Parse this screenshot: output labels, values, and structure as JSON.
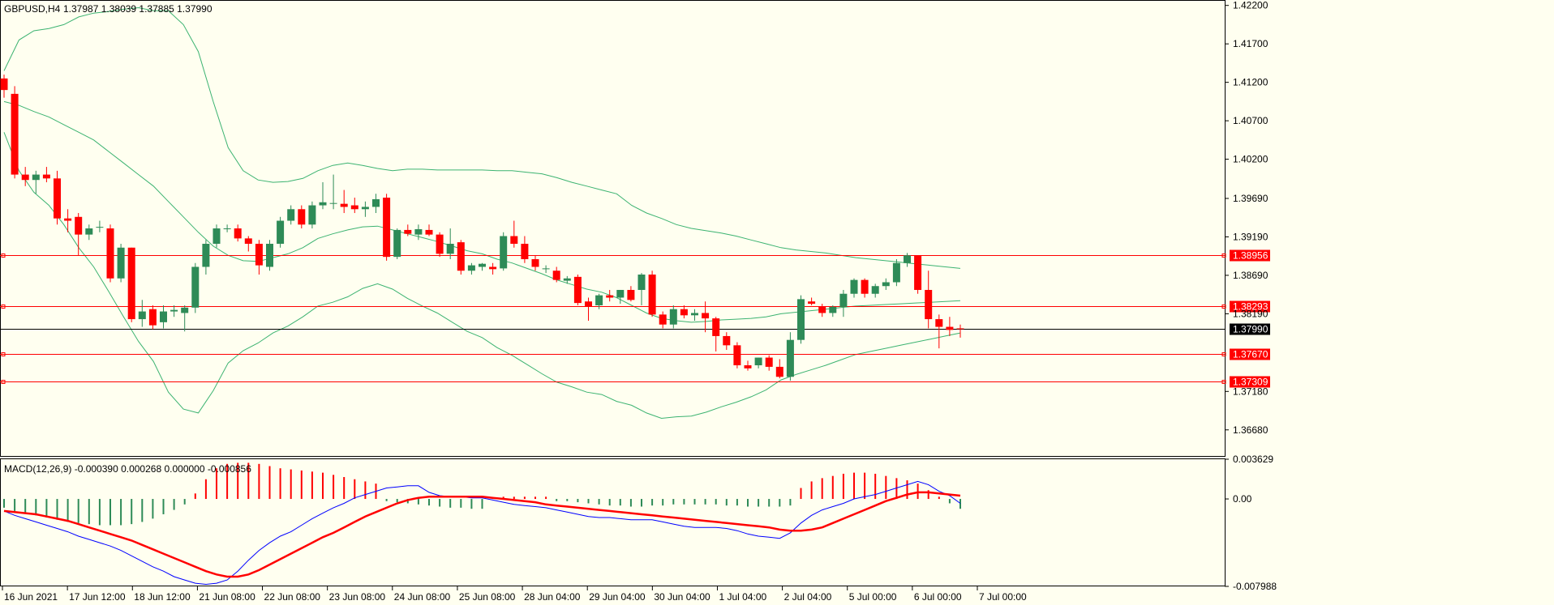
{
  "chart_data": {
    "type": "candlestick",
    "symbol_label": "GBPUSD,H4",
    "ohlc_label": "1.37987 1.38039 1.37885 1.37990",
    "colors": {
      "background": "#fffff0",
      "bull": "#2e8b57",
      "bear": "#ff0000",
      "bands": "#3cb371",
      "level": "#ff0000",
      "current": "#000000",
      "macd_line": "#0000ff",
      "signal_line": "#ff0000"
    },
    "y_axis": {
      "range": [
        1.3633,
        1.4226
      ],
      "ticks": [
        "1.42200",
        "1.41700",
        "1.41200",
        "1.40700",
        "1.40200",
        "1.39690",
        "1.39190",
        "1.38690",
        "1.38190",
        "1.37180",
        "1.36680"
      ]
    },
    "x_axis": {
      "labels": [
        "16 Jun 2021",
        "17 Jun 12:00",
        "18 Jun 12:00",
        "21 Jun 08:00",
        "22 Jun 08:00",
        "23 Jun 08:00",
        "24 Jun 08:00",
        "25 Jun 08:00",
        "28 Jun 04:00",
        "29 Jun 04:00",
        "30 Jun 04:00",
        "1 Jul 04:00",
        "2 Jul 04:00",
        "5 Jul 00:00",
        "6 Jul 00:00",
        "7 Jul 00:00"
      ]
    },
    "levels": [
      "1.38956",
      "1.38293",
      "1.37670",
      "1.37309"
    ],
    "current_price": "1.37990",
    "candles": [
      [
        1.4125,
        1.413,
        1.41,
        1.411
      ],
      [
        1.4105,
        1.4115,
        1.3995,
        1.4
      ],
      [
        1.4,
        1.401,
        1.3985,
        1.3993
      ],
      [
        1.3993,
        1.4005,
        1.3975,
        1.4
      ],
      [
        1.4,
        1.401,
        1.399,
        1.3995
      ],
      [
        1.3995,
        1.4005,
        1.3935,
        1.3943
      ],
      [
        1.3943,
        1.3955,
        1.3925,
        1.394
      ],
      [
        1.3945,
        1.395,
        1.3895,
        1.3922
      ],
      [
        1.3922,
        1.3935,
        1.3915,
        1.393
      ],
      [
        1.3932,
        1.394,
        1.3925,
        1.3932
      ],
      [
        1.393,
        1.3935,
        1.386,
        1.3865
      ],
      [
        1.3865,
        1.391,
        1.386,
        1.3905
      ],
      [
        1.3905,
        1.3905,
        1.3808,
        1.3812
      ],
      [
        1.3812,
        1.3837,
        1.3802,
        1.3822
      ],
      [
        1.3825,
        1.383,
        1.3799,
        1.3804
      ],
      [
        1.3808,
        1.383,
        1.38,
        1.3822
      ],
      [
        1.3822,
        1.383,
        1.3815,
        1.3824
      ],
      [
        1.382,
        1.383,
        1.3796,
        1.3827
      ],
      [
        1.3827,
        1.3885,
        1.382,
        1.388
      ],
      [
        1.388,
        1.3915,
        1.387,
        1.391
      ],
      [
        1.391,
        1.3935,
        1.3905,
        1.393
      ],
      [
        1.393,
        1.3935,
        1.3925,
        1.393
      ],
      [
        1.393,
        1.3935,
        1.3913,
        1.3917
      ],
      [
        1.3917,
        1.392,
        1.39,
        1.391
      ],
      [
        1.391,
        1.3915,
        1.387,
        1.3882
      ],
      [
        1.388,
        1.3915,
        1.3875,
        1.391
      ],
      [
        1.391,
        1.3945,
        1.3905,
        1.394
      ],
      [
        1.394,
        1.396,
        1.3935,
        1.3955
      ],
      [
        1.3955,
        1.396,
        1.393,
        1.3935
      ],
      [
        1.3935,
        1.3965,
        1.393,
        1.396
      ],
      [
        1.396,
        1.399,
        1.3955,
        1.3964
      ],
      [
        1.3962,
        1.4,
        1.3955,
        1.3963
      ],
      [
        1.3962,
        1.398,
        1.395,
        1.3958
      ],
      [
        1.396,
        1.397,
        1.395,
        1.3955
      ],
      [
        1.3955,
        1.3965,
        1.3945,
        1.3958
      ],
      [
        1.3958,
        1.3975,
        1.395,
        1.3968
      ],
      [
        1.397,
        1.3975,
        1.3888,
        1.3893
      ],
      [
        1.3893,
        1.393,
        1.389,
        1.3928
      ],
      [
        1.3928,
        1.3935,
        1.392,
        1.3923
      ],
      [
        1.3922,
        1.3935,
        1.3915,
        1.3929
      ],
      [
        1.3928,
        1.3935,
        1.392,
        1.3922
      ],
      [
        1.3922,
        1.3925,
        1.3893,
        1.3897
      ],
      [
        1.3897,
        1.393,
        1.389,
        1.391
      ],
      [
        1.3912,
        1.3915,
        1.387,
        1.3875
      ],
      [
        1.3875,
        1.3885,
        1.387,
        1.3882
      ],
      [
        1.388,
        1.3885,
        1.3875,
        1.3884
      ],
      [
        1.388,
        1.3885,
        1.387,
        1.3877
      ],
      [
        1.3878,
        1.3925,
        1.3875,
        1.392
      ],
      [
        1.392,
        1.394,
        1.3905,
        1.391
      ],
      [
        1.391,
        1.392,
        1.3885,
        1.389
      ],
      [
        1.389,
        1.3895,
        1.3875,
        1.388
      ],
      [
        1.3878,
        1.3882,
        1.3872,
        1.3878
      ],
      [
        1.3875,
        1.388,
        1.386,
        1.3863
      ],
      [
        1.3862,
        1.3868,
        1.3858,
        1.3865
      ],
      [
        1.3867,
        1.387,
        1.383,
        1.3833
      ],
      [
        1.3835,
        1.384,
        1.381,
        1.3828
      ],
      [
        1.383,
        1.3845,
        1.3825,
        1.3843
      ],
      [
        1.3843,
        1.385,
        1.3835,
        1.384
      ],
      [
        1.384,
        1.385,
        1.3832,
        1.385
      ],
      [
        1.385,
        1.3855,
        1.3835,
        1.3837
      ],
      [
        1.385,
        1.3872,
        1.383,
        1.387
      ],
      [
        1.387,
        1.3875,
        1.3815,
        1.3818
      ],
      [
        1.3818,
        1.3822,
        1.38,
        1.3805
      ],
      [
        1.3805,
        1.383,
        1.38,
        1.3825
      ],
      [
        1.3825,
        1.383,
        1.3813,
        1.3817
      ],
      [
        1.3817,
        1.3825,
        1.381,
        1.382
      ],
      [
        1.382,
        1.3835,
        1.3795,
        1.3813
      ],
      [
        1.3813,
        1.3815,
        1.377,
        1.379
      ],
      [
        1.379,
        1.3795,
        1.3772,
        1.3778
      ],
      [
        1.3778,
        1.3782,
        1.3748,
        1.3752
      ],
      [
        1.3752,
        1.3758,
        1.3745,
        1.3748
      ],
      [
        1.3752,
        1.3762,
        1.3748,
        1.3762
      ],
      [
        1.3762,
        1.3765,
        1.3745,
        1.375
      ],
      [
        1.375,
        1.376,
        1.3735,
        1.3737
      ],
      [
        1.3737,
        1.3795,
        1.3732,
        1.3785
      ],
      [
        1.3785,
        1.3843,
        1.378,
        1.3838
      ],
      [
        1.3835,
        1.384,
        1.383,
        1.3832
      ],
      [
        1.3828,
        1.3832,
        1.3815,
        1.382
      ],
      [
        1.382,
        1.383,
        1.3815,
        1.3828
      ],
      [
        1.3828,
        1.385,
        1.3815,
        1.3845
      ],
      [
        1.3845,
        1.3865,
        1.384,
        1.3863
      ],
      [
        1.3863,
        1.3865,
        1.384,
        1.3845
      ],
      [
        1.3845,
        1.3858,
        1.384,
        1.3855
      ],
      [
        1.3855,
        1.3865,
        1.385,
        1.386
      ],
      [
        1.386,
        1.389,
        1.3855,
        1.3885
      ],
      [
        1.3885,
        1.3898,
        1.388,
        1.3895
      ],
      [
        1.3895,
        1.3895,
        1.3845,
        1.385
      ],
      [
        1.385,
        1.3875,
        1.38,
        1.3812
      ],
      [
        1.3812,
        1.3818,
        1.3774,
        1.3802
      ],
      [
        1.3802,
        1.3815,
        1.379,
        1.3798
      ],
      [
        1.38,
        1.3805,
        1.3788,
        1.3799
      ]
    ],
    "bollinger": {
      "upper": [
        1.4135,
        1.4175,
        1.4187,
        1.419,
        1.4195,
        1.4205,
        1.421,
        1.4212,
        1.4215,
        1.4217,
        1.4213,
        1.4213,
        1.4195,
        1.416,
        1.4095,
        1.4035,
        1.4005,
        1.3993,
        1.399,
        1.3991,
        1.3995,
        1.4005,
        1.4012,
        1.4015,
        1.4012,
        1.4008,
        1.4005,
        1.4007,
        1.4007,
        1.4006,
        1.4006,
        1.4006,
        1.4006,
        1.4005,
        1.4005,
        1.4003,
        1.4001,
        1.3996,
        1.399,
        1.3985,
        1.398,
        1.3975,
        1.396,
        1.395,
        1.3943,
        1.3935,
        1.393,
        1.3927,
        1.3924,
        1.392,
        1.3915,
        1.391,
        1.3905,
        1.3902,
        1.39,
        1.3898,
        1.3895,
        1.3892,
        1.389,
        1.3888,
        1.3886,
        1.3884,
        1.3882,
        1.388,
        1.3878
      ],
      "mid": [
        1.4095,
        1.409,
        1.4082,
        1.4075,
        1.4065,
        1.4055,
        1.4045,
        1.403,
        1.4015,
        1.4,
        1.3985,
        1.3965,
        1.3945,
        1.3925,
        1.3907,
        1.3895,
        1.3888,
        1.3887,
        1.3892,
        1.3897,
        1.3905,
        1.3917,
        1.3923,
        1.3928,
        1.3932,
        1.3933,
        1.3928,
        1.3923,
        1.3918,
        1.3913,
        1.3907,
        1.3901,
        1.3897,
        1.389,
        1.3885,
        1.3878,
        1.3871,
        1.3863,
        1.3857,
        1.3851,
        1.3847,
        1.384,
        1.383,
        1.382,
        1.3813,
        1.381,
        1.3808,
        1.3809,
        1.3811,
        1.3812,
        1.3813,
        1.3815,
        1.3819,
        1.3821,
        1.3823,
        1.3825,
        1.3827,
        1.3829,
        1.383,
        1.3831,
        1.3832,
        1.3833,
        1.3834,
        1.3835,
        1.3836
      ],
      "lower": [
        1.4055,
        1.4005,
        1.3977,
        1.396,
        1.3935,
        1.3905,
        1.388,
        1.3848,
        1.3815,
        1.3783,
        1.3757,
        1.3717,
        1.3695,
        1.369,
        1.3719,
        1.3755,
        1.3771,
        1.3781,
        1.3794,
        1.3803,
        1.3815,
        1.3829,
        1.3834,
        1.3841,
        1.3852,
        1.3858,
        1.3851,
        1.3839,
        1.3829,
        1.382,
        1.3808,
        1.3796,
        1.3788,
        1.3775,
        1.3765,
        1.3753,
        1.3741,
        1.373,
        1.3724,
        1.3717,
        1.3714,
        1.3705,
        1.37,
        1.369,
        1.3683,
        1.3685,
        1.3686,
        1.3691,
        1.3698,
        1.3704,
        1.3711,
        1.372,
        1.3733,
        1.374,
        1.3746,
        1.3752,
        1.3759,
        1.3766,
        1.377,
        1.3774,
        1.3778,
        1.3782,
        1.3786,
        1.379,
        1.3794
      ]
    },
    "macd": {
      "label": "MACD(12,26,9) -0.000390 0.000268 0.000000 -0.000856",
      "range": [
        -0.007988,
        0.003629
      ],
      "ticks": [
        "0.003629",
        "0.00",
        "-0.007988"
      ],
      "histogram": [
        -0.0008,
        -0.0011,
        -0.0013,
        -0.0015,
        -0.0017,
        -0.0019,
        -0.0021,
        -0.0022,
        -0.0023,
        -0.0024,
        -0.0024,
        -0.0024,
        -0.0023,
        -0.0021,
        -0.0018,
        -0.0014,
        -0.001,
        -0.0005,
        0.0005,
        0.0018,
        0.0028,
        0.0032,
        0.0033,
        0.0033,
        0.0032,
        0.003,
        0.0028,
        0.0027,
        0.0026,
        0.0025,
        0.0024,
        0.0022,
        0.002,
        0.0018,
        0.0016,
        0.0014,
        -0.0002,
        -0.0003,
        -0.0004,
        -0.0005,
        -0.0006,
        -0.0007,
        -0.0008,
        -0.0008,
        -0.0009,
        -0.0009,
        0.0001,
        0.0002,
        0.0002,
        0.0002,
        0.0002,
        0.0002,
        -0.0002,
        -0.0002,
        -0.0003,
        -0.0004,
        -0.0005,
        -0.0006,
        -0.0006,
        -0.0007,
        -0.0007,
        -0.0006,
        -0.0006,
        -0.0005,
        -0.0005,
        -0.0005,
        -0.0005,
        -0.0005,
        -0.0006,
        -0.0006,
        -0.0007,
        -0.0007,
        -0.0007,
        -0.0007,
        -0.0006,
        0.001,
        0.0016,
        0.0019,
        0.0021,
        0.0023,
        0.0024,
        0.0024,
        0.0023,
        0.0021,
        0.0019,
        0.0017,
        0.0014,
        0.0008,
        0.0002,
        -0.0004,
        -0.0009
      ],
      "macd_line": [
        -0.0011,
        -0.0015,
        -0.0018,
        -0.0021,
        -0.0024,
        -0.0027,
        -0.003,
        -0.0034,
        -0.0037,
        -0.004,
        -0.0043,
        -0.0047,
        -0.0052,
        -0.0057,
        -0.0062,
        -0.0066,
        -0.0071,
        -0.0074,
        -0.0077,
        -0.0078,
        -0.0077,
        -0.0074,
        -0.0066,
        -0.0056,
        -0.0047,
        -0.004,
        -0.0034,
        -0.003,
        -0.0024,
        -0.0018,
        -0.0013,
        -0.0008,
        -0.0004,
        0.0001,
        0.0004,
        0.0007,
        0.001,
        0.0011,
        0.0012,
        0.0012,
        0.0006,
        0.0003,
        0.0002,
        0.0002,
        0.0001,
        0.0001,
        -0.0001,
        -0.0003,
        -0.0005,
        -0.0006,
        -0.0007,
        -0.0008,
        -0.001,
        -0.0012,
        -0.0014,
        -0.0016,
        -0.0017,
        -0.0017,
        -0.0018,
        -0.0019,
        -0.0019,
        -0.0019,
        -0.0021,
        -0.0023,
        -0.0025,
        -0.0026,
        -0.0026,
        -0.0026,
        -0.0027,
        -0.0029,
        -0.0032,
        -0.0034,
        -0.0035,
        -0.0036,
        -0.0031,
        -0.0022,
        -0.0015,
        -0.001,
        -0.0007,
        -0.0004,
        0.0,
        0.0002,
        0.0004,
        0.0007,
        0.001,
        0.0013,
        0.0016,
        0.0013,
        0.0007,
        0.0003,
        -0.0004
      ],
      "signal_line": [
        -0.0011,
        -0.0012,
        -0.0013,
        -0.0014,
        -0.0016,
        -0.0018,
        -0.002,
        -0.0023,
        -0.0026,
        -0.0029,
        -0.0032,
        -0.0035,
        -0.0038,
        -0.0042,
        -0.0046,
        -0.005,
        -0.0054,
        -0.0058,
        -0.0062,
        -0.0066,
        -0.0069,
        -0.0071,
        -0.0071,
        -0.0069,
        -0.0065,
        -0.006,
        -0.0055,
        -0.005,
        -0.0045,
        -0.004,
        -0.0035,
        -0.0031,
        -0.0026,
        -0.0021,
        -0.0016,
        -0.0012,
        -0.0008,
        -0.0004,
        -0.0001,
        0.0001,
        0.0002,
        0.0002,
        0.0002,
        0.0002,
        0.0002,
        0.0002,
        0.0001,
        0.0,
        -0.0001,
        -0.0002,
        -0.0003,
        -0.0005,
        -0.0006,
        -0.0007,
        -0.0008,
        -0.0009,
        -0.001,
        -0.0011,
        -0.0012,
        -0.0013,
        -0.0014,
        -0.0015,
        -0.0016,
        -0.0017,
        -0.0018,
        -0.0019,
        -0.002,
        -0.0021,
        -0.0022,
        -0.0023,
        -0.0024,
        -0.0025,
        -0.0026,
        -0.0028,
        -0.0029,
        -0.0029,
        -0.0028,
        -0.0026,
        -0.0022,
        -0.0018,
        -0.0014,
        -0.001,
        -0.0006,
        -0.0002,
        0.0001,
        0.0004,
        0.0006,
        0.0006,
        0.0005,
        0.0004,
        0.0003
      ]
    }
  }
}
